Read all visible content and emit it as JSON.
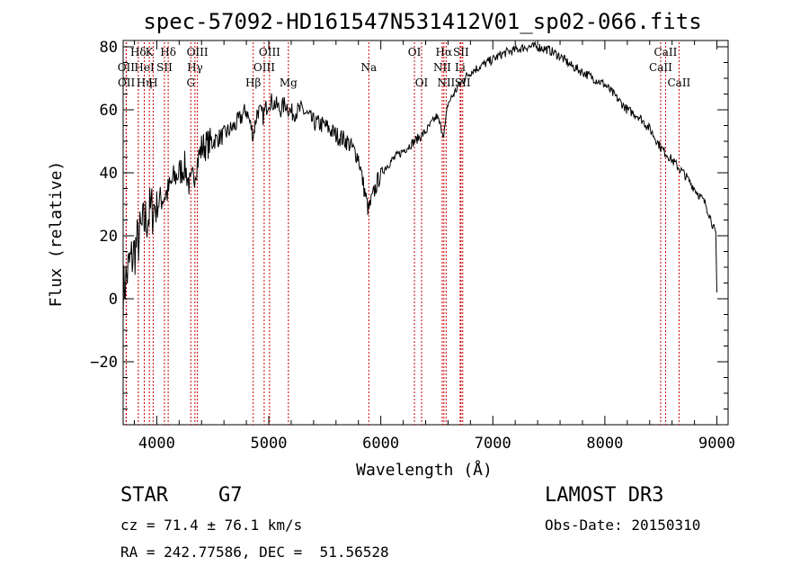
{
  "chart_data": {
    "type": "line",
    "title": "spec-57092-HD161547N531412V01_sp02-066.fits",
    "xlabel": "Wavelength (Å)",
    "ylabel": "Flux (relative)",
    "xlim": [
      3700,
      9100
    ],
    "ylim": [
      -40,
      82
    ],
    "x_ticks": [
      4000,
      5000,
      6000,
      7000,
      8000,
      9000
    ],
    "x_tick_labels": [
      "4000",
      "5000",
      "6000",
      "7000",
      "8000",
      "9000"
    ],
    "y_ticks": [
      -20,
      0,
      20,
      40,
      60,
      80
    ],
    "y_tick_labels": [
      "−20",
      "0",
      "20",
      "40",
      "60",
      "80"
    ],
    "series": [
      {
        "name": "flux",
        "x": [
          3700,
          3750,
          3800,
          3850,
          3900,
          3950,
          4000,
          4050,
          4100,
          4150,
          4200,
          4250,
          4300,
          4350,
          4400,
          4500,
          4600,
          4700,
          4800,
          4861,
          4900,
          4950,
          5000,
          5050,
          5100,
          5150,
          5200,
          5300,
          5400,
          5500,
          5600,
          5700,
          5800,
          5850,
          5890,
          5950,
          6000,
          6100,
          6200,
          6300,
          6400,
          6500,
          6563,
          6600,
          6700,
          6800,
          6900,
          7000,
          7100,
          7200,
          7300,
          7400,
          7500,
          7600,
          7700,
          7800,
          7900,
          8000,
          8100,
          8200,
          8300,
          8400,
          8500,
          8600,
          8700,
          8800,
          8900,
          8950,
          8990,
          9000
        ],
        "values": [
          2,
          10,
          15,
          20,
          25,
          28,
          30,
          32,
          34,
          38,
          40,
          42,
          35,
          42,
          48,
          50,
          52,
          55,
          60,
          52,
          60,
          58,
          63,
          62,
          60,
          62,
          59,
          60,
          56,
          55,
          52,
          50,
          45,
          35,
          28,
          35,
          40,
          44,
          47,
          50,
          53,
          58,
          52,
          62,
          68,
          72,
          74,
          76,
          78,
          79,
          80,
          80,
          79,
          77,
          74,
          72,
          70,
          68,
          64,
          60,
          58,
          54,
          48,
          44,
          40,
          35,
          30,
          25,
          20,
          2
        ]
      }
    ],
    "line_markers": [
      {
        "label": "Hδ",
        "x": 3835,
        "row": 0
      },
      {
        "label": "OII",
        "x": 3727,
        "row": 1
      },
      {
        "label": "OII",
        "x": 3729,
        "row": 2
      },
      {
        "label": "K",
        "x": 3934,
        "row": 0
      },
      {
        "label": "HeI",
        "x": 3889,
        "row": 1
      },
      {
        "label": "Hη",
        "x": 3889,
        "row": 2
      },
      {
        "label": "SII",
        "x": 4069,
        "row": 1
      },
      {
        "label": "H",
        "x": 3968,
        "row": 2
      },
      {
        "label": "Hδ",
        "x": 4102,
        "row": 0
      },
      {
        "label": "OIII",
        "x": 4363,
        "row": 0
      },
      {
        "label": "Hγ",
        "x": 4341,
        "row": 1
      },
      {
        "label": "G",
        "x": 4304,
        "row": 2
      },
      {
        "label": "Hβ",
        "x": 4861,
        "row": 2
      },
      {
        "label": "OIII",
        "x": 5007,
        "row": 0
      },
      {
        "label": "OIII",
        "x": 4959,
        "row": 1
      },
      {
        "label": "Mg",
        "x": 5175,
        "row": 2
      },
      {
        "label": "Na",
        "x": 5893,
        "row": 1
      },
      {
        "label": "OI",
        "x": 6300,
        "row": 0
      },
      {
        "label": "OI",
        "x": 6364,
        "row": 2
      },
      {
        "label": "Hα",
        "x": 6563,
        "row": 0
      },
      {
        "label": "SII",
        "x": 6716,
        "row": 0
      },
      {
        "label": "NII",
        "x": 6548,
        "row": 1
      },
      {
        "label": "Li",
        "x": 6708,
        "row": 1
      },
      {
        "label": "NII",
        "x": 6583,
        "row": 2
      },
      {
        "label": "SII",
        "x": 6731,
        "row": 2
      },
      {
        "label": "CaII",
        "x": 8542,
        "row": 0
      },
      {
        "label": "CaII",
        "x": 8498,
        "row": 1
      },
      {
        "label": "CaII",
        "x": 8662,
        "row": 2
      }
    ],
    "grid": false
  },
  "info": {
    "object_type": "STAR",
    "subclass": "G7",
    "survey": "LAMOST DR3",
    "cz": "cz = 71.4 ± 76.1 km/s",
    "obs_date": "Obs-Date: 20150310",
    "coords": "RA = 242.77586, DEC =  51.56528"
  },
  "colors": {
    "line": "#000000",
    "marker": "#cc0000",
    "background": "#ffffff"
  }
}
